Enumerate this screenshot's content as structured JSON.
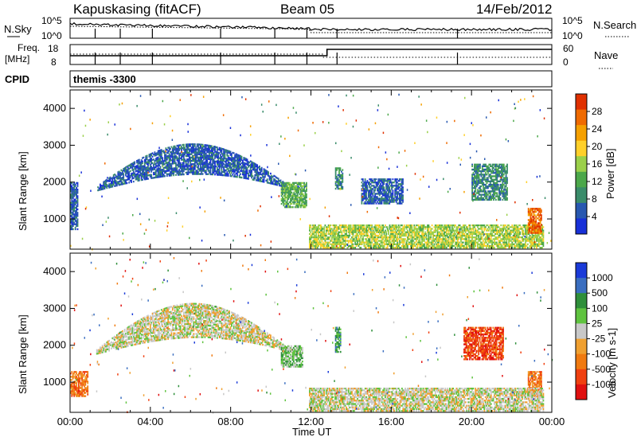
{
  "header": {
    "station": "Kapuskasing (fitACF)",
    "beam": "Beam 05",
    "date": "14/Feb/2012"
  },
  "status_panels": {
    "nsky_label": "N.Sky",
    "nsearch_label": "N.Search",
    "noise_ticks": [
      "10^5",
      "10^0"
    ],
    "freq_label_1": "Freq.",
    "freq_label_2": "[MHz]",
    "freq_ticks": [
      "18",
      "8"
    ],
    "nave_label": "Nave",
    "nave_ticks": [
      "60",
      "0"
    ],
    "cpid_label": "CPID",
    "cpid_value": "themis -3300"
  },
  "colors": {
    "power": [
      "#1830d8",
      "#2858b0",
      "#3a8c6a",
      "#4ca84a",
      "#9bd04a",
      "#ffd02a",
      "#f5a000",
      "#ef6a00",
      "#e03000"
    ],
    "velocity": [
      "#1a3ad8",
      "#3a6ec0",
      "#2f8f3a",
      "#5fc33f",
      "#c8c8c8",
      "#f0a030",
      "#f07a10",
      "#f04010",
      "#e01010"
    ]
  },
  "chart_data": [
    {
      "type": "heatmap",
      "panel": "power",
      "ylabel": "Slant Range [km]",
      "xlabel": "",
      "x_ticks": [
        "00:00",
        "04:00",
        "08:00",
        "12:00",
        "16:00",
        "20:00",
        "00:00"
      ],
      "y_ticks": [
        1000,
        2000,
        3000,
        4000
      ],
      "xlim": [
        0,
        24
      ],
      "ylim": [
        180,
        4500
      ],
      "colorbar": {
        "label": "Power [dB]",
        "ticks": [
          4,
          8,
          12,
          16,
          20,
          24,
          28
        ],
        "range": [
          0,
          32
        ]
      },
      "regions": [
        {
          "x0": 0.0,
          "x1": 0.4,
          "y0": 700,
          "y1": 2000,
          "level": 1
        },
        {
          "x0": 1.3,
          "x1": 11.4,
          "upper_peak": 3050,
          "upper_edge": 1900,
          "level": 1
        },
        {
          "x0": 10.5,
          "x1": 11.8,
          "y0": 1300,
          "y1": 2000,
          "level": 3
        },
        {
          "x0": 13.2,
          "x1": 13.6,
          "y0": 1800,
          "y1": 2400,
          "level": 2
        },
        {
          "x0": 14.5,
          "x1": 16.6,
          "y0": 1400,
          "y1": 2100,
          "level": 1
        },
        {
          "x0": 20.0,
          "x1": 21.8,
          "y0": 1500,
          "y1": 2500,
          "level": 2
        },
        {
          "x0": 11.9,
          "x1": 23.6,
          "y0": 200,
          "y1": 850,
          "level": 4
        },
        {
          "x0": 22.8,
          "x1": 23.5,
          "y0": 600,
          "y1": 1300,
          "level": 7
        }
      ]
    },
    {
      "type": "heatmap",
      "panel": "velocity",
      "ylabel": "Slant Range [km]",
      "xlabel": "Time UT",
      "x_ticks": [
        "00:00",
        "04:00",
        "08:00",
        "12:00",
        "16:00",
        "20:00",
        "00:00"
      ],
      "y_ticks": [
        1000,
        2000,
        3000,
        4000
      ],
      "xlim": [
        0,
        24
      ],
      "ylim": [
        180,
        4500
      ],
      "colorbar": {
        "label": "Velocity [m s-1]",
        "ticks": [
          1000,
          500,
          100,
          25,
          -25,
          -100,
          -500,
          -1000
        ]
      },
      "regions": [
        {
          "x0": 0.0,
          "x1": 0.9,
          "y0": 600,
          "y1": 1300,
          "level": 6
        },
        {
          "x0": 1.3,
          "x1": 11.4,
          "upper_peak": 3150,
          "upper_edge": 1900,
          "level": 4
        },
        {
          "x0": 10.5,
          "x1": 11.6,
          "y0": 1400,
          "y1": 2000,
          "level": 3
        },
        {
          "x0": 13.2,
          "x1": 13.5,
          "y0": 1800,
          "y1": 2500,
          "level": 2
        },
        {
          "x0": 19.6,
          "x1": 21.6,
          "y0": 1600,
          "y1": 2500,
          "level": 7
        },
        {
          "x0": 22.8,
          "x1": 23.5,
          "y0": 600,
          "y1": 1300,
          "level": 6
        },
        {
          "x0": 11.9,
          "x1": 23.6,
          "y0": 200,
          "y1": 850,
          "level": 4
        }
      ]
    }
  ]
}
